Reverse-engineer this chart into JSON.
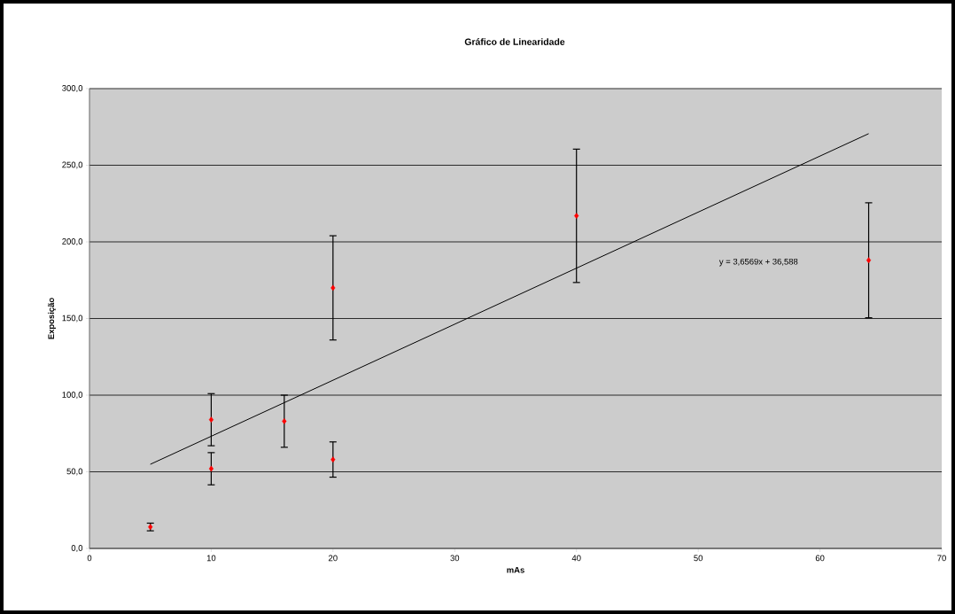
{
  "chart_data": {
    "type": "scatter",
    "title": "Gráfico de Linearidade",
    "xlabel": "mAs",
    "ylabel": "Exposição",
    "xlim": [
      0,
      70
    ],
    "ylim": [
      0,
      300
    ],
    "xticks": [
      0,
      10,
      20,
      30,
      40,
      50,
      60,
      70
    ],
    "yticks": [
      {
        "value": 0,
        "label": "0,0"
      },
      {
        "value": 50,
        "label": "50,0"
      },
      {
        "value": 100,
        "label": "100,0"
      },
      {
        "value": 150,
        "label": "150,0"
      },
      {
        "value": 200,
        "label": "200,0"
      },
      {
        "value": 250,
        "label": "250,0"
      },
      {
        "value": 300,
        "label": "300,0"
      }
    ],
    "grid": "y",
    "marker": "diamond",
    "series": [
      {
        "color": "#ff0000",
        "x": [
          5,
          10,
          10,
          16,
          20,
          20,
          40,
          64
        ],
        "values": [
          14,
          84,
          52,
          83,
          170,
          58,
          217,
          188
        ],
        "errors": [
          2.5,
          17,
          10.5,
          17,
          34,
          11.5,
          43.5,
          37.5
        ]
      },
      {
        "type": "line",
        "color": "#000000",
        "marker": "none",
        "x": [
          5,
          64
        ],
        "values": [
          54.9,
          270.6
        ]
      }
    ],
    "annotations": [
      "y = 3,6569x + 36,588"
    ]
  }
}
